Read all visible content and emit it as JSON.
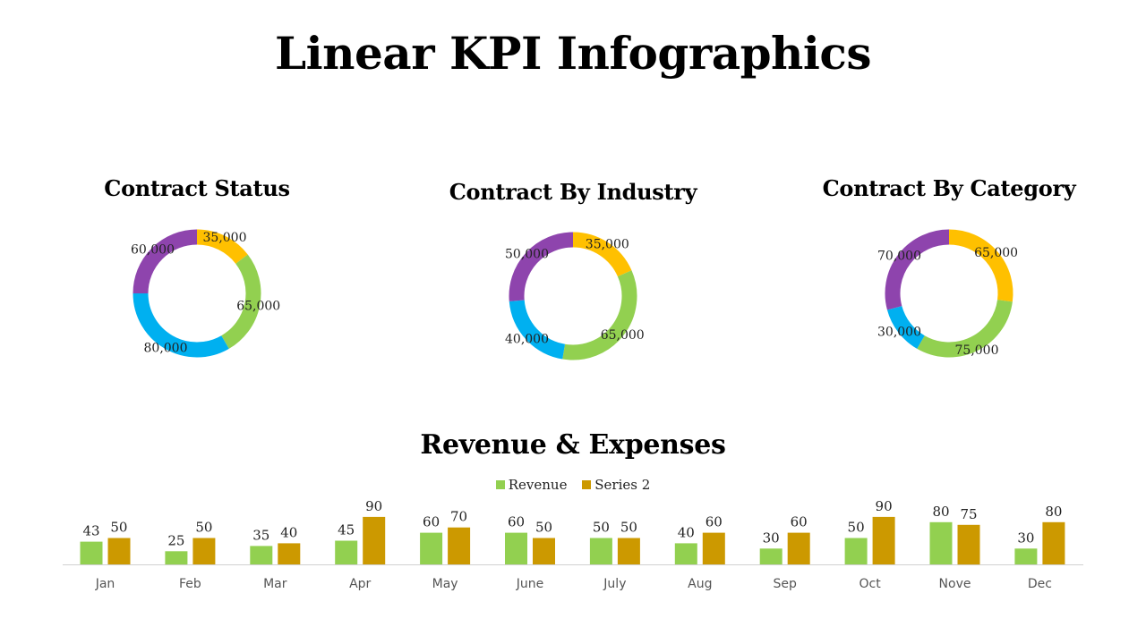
{
  "page": {
    "title": "Linear KPI Infographics"
  },
  "colors": {
    "yellow": "#FFC000",
    "green": "#92D050",
    "blue": "#00B0F0",
    "purple": "#8E44AD",
    "gold": "#CC9900"
  },
  "chart_data": [
    {
      "type": "pie",
      "title": "Contract  Status",
      "categories": [
        "35,000",
        "65,000",
        "80,000",
        "60,000"
      ],
      "values": [
        35000,
        65000,
        80000,
        60000
      ],
      "colors": [
        "#FFC000",
        "#92D050",
        "#00B0F0",
        "#8E44AD"
      ]
    },
    {
      "type": "pie",
      "title": "Contract By Industry",
      "categories": [
        "35,000",
        "65,000",
        "40,000",
        "50,000"
      ],
      "values": [
        35000,
        65000,
        40000,
        50000
      ],
      "colors": [
        "#FFC000",
        "#92D050",
        "#00B0F0",
        "#8E44AD"
      ]
    },
    {
      "type": "pie",
      "title": "Contract By Category",
      "categories": [
        "65,000",
        "75,000",
        "30,000",
        "70,000"
      ],
      "values": [
        65000,
        75000,
        30000,
        70000
      ],
      "colors": [
        "#FFC000",
        "#92D050",
        "#00B0F0",
        "#8E44AD"
      ]
    },
    {
      "type": "bar",
      "title": "Revenue & Expenses",
      "categories": [
        "Jan",
        "Feb",
        "Mar",
        "Apr",
        "May",
        "June",
        "July",
        "Aug",
        "Sep",
        "Oct",
        "Nove",
        "Dec"
      ],
      "series": [
        {
          "name": "Revenue",
          "color": "#92D050",
          "values": [
            43,
            25,
            35,
            45,
            60,
            60,
            50,
            40,
            30,
            50,
            80,
            30
          ]
        },
        {
          "name": "Series 2",
          "color": "#CC9900",
          "values": [
            50,
            50,
            40,
            90,
            70,
            50,
            50,
            60,
            60,
            90,
            75,
            80
          ]
        }
      ],
      "legend": "top"
    }
  ]
}
